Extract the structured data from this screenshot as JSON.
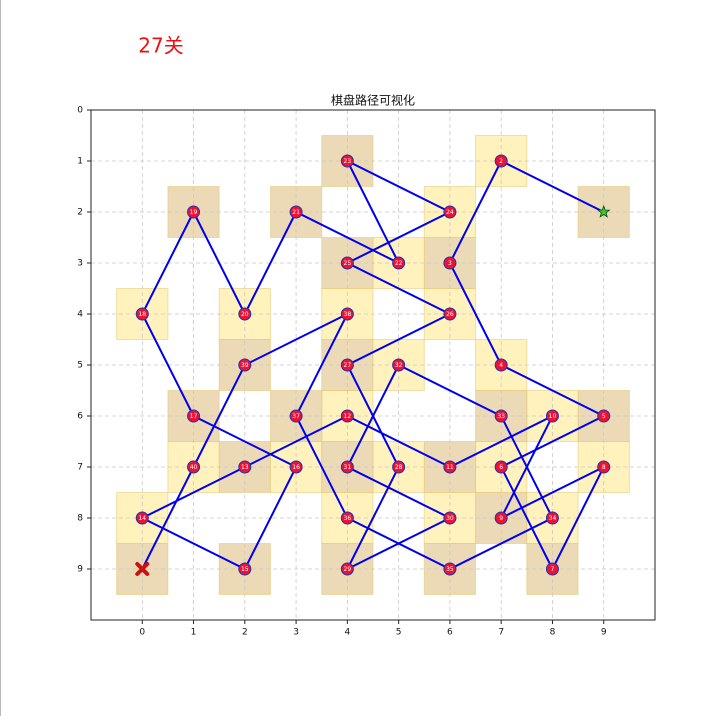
{
  "header": {
    "title": "27关"
  },
  "chart_data": {
    "type": "path",
    "title": "棋盘路径可视化",
    "xlim": [
      -1,
      10
    ],
    "ylim": [
      10,
      0
    ],
    "xticks": [
      0,
      1,
      2,
      3,
      4,
      5,
      6,
      7,
      8,
      9
    ],
    "yticks": [
      0,
      1,
      2,
      3,
      4,
      5,
      6,
      7,
      8,
      9
    ],
    "grid": true,
    "line_color": "#0000ee",
    "node_color": "#ee1133",
    "start": {
      "x": 9,
      "y": 2,
      "color": "#33cc33",
      "cell_color": "#e8d3a8"
    },
    "end": {
      "x": 0,
      "y": 9,
      "color": "#cc1111",
      "cell_color": "#e8d3a8"
    },
    "path": [
      {
        "x": 7,
        "y": 1,
        "label": "2",
        "cell_color": "#fff0b0"
      },
      {
        "x": 6,
        "y": 3,
        "label": "3",
        "cell_color": "#e8d3a8"
      },
      {
        "x": 7,
        "y": 5,
        "label": "4",
        "cell_color": "#fff0b0"
      },
      {
        "x": 9,
        "y": 6,
        "label": "5",
        "cell_color": "#e8d3a8"
      },
      {
        "x": 7,
        "y": 7,
        "label": "6",
        "cell_color": "#fff0b0"
      },
      {
        "x": 8,
        "y": 9,
        "label": "7",
        "cell_color": "#e8d3a8"
      },
      {
        "x": 9,
        "y": 7,
        "label": "8",
        "cell_color": "#fff0b0"
      },
      {
        "x": 7,
        "y": 8,
        "label": "9",
        "cell_color": "#e8d3a8"
      },
      {
        "x": 8,
        "y": 6,
        "label": "10",
        "cell_color": "#fff0b0"
      },
      {
        "x": 6,
        "y": 7,
        "label": "11",
        "cell_color": "#e8d3a8"
      },
      {
        "x": 4,
        "y": 6,
        "label": "12",
        "cell_color": "#fff0b0"
      },
      {
        "x": 2,
        "y": 7,
        "label": "13",
        "cell_color": "#e8d3a8"
      },
      {
        "x": 0,
        "y": 8,
        "label": "14",
        "cell_color": "#fff0b0"
      },
      {
        "x": 2,
        "y": 9,
        "label": "15",
        "cell_color": "#e8d3a8"
      },
      {
        "x": 3,
        "y": 7,
        "label": "16",
        "cell_color": "#fff0b0"
      },
      {
        "x": 1,
        "y": 6,
        "label": "17",
        "cell_color": "#e8d3a8"
      },
      {
        "x": 0,
        "y": 4,
        "label": "18",
        "cell_color": "#fff0b0"
      },
      {
        "x": 1,
        "y": 2,
        "label": "19",
        "cell_color": "#e8d3a8"
      },
      {
        "x": 2,
        "y": 4,
        "label": "20",
        "cell_color": "#fff0b0"
      },
      {
        "x": 3,
        "y": 2,
        "label": "21",
        "cell_color": "#e8d3a8"
      },
      {
        "x": 5,
        "y": 3,
        "label": "22",
        "cell_color": "#fff0b0"
      },
      {
        "x": 4,
        "y": 1,
        "label": "23",
        "cell_color": "#e8d3a8"
      },
      {
        "x": 6,
        "y": 2,
        "label": "24",
        "cell_color": "#fff0b0"
      },
      {
        "x": 4,
        "y": 3,
        "label": "25",
        "cell_color": "#e8d3a8"
      },
      {
        "x": 6,
        "y": 4,
        "label": "26",
        "cell_color": "#fff0b0"
      },
      {
        "x": 4,
        "y": 5,
        "label": "27",
        "cell_color": "#e8d3a8"
      },
      {
        "x": 5,
        "y": 7,
        "label": "28",
        "cell_color": "#fff0b0"
      },
      {
        "x": 4,
        "y": 9,
        "label": "29",
        "cell_color": "#e8d3a8"
      },
      {
        "x": 6,
        "y": 8,
        "label": "30",
        "cell_color": "#fff0b0"
      },
      {
        "x": 4,
        "y": 7,
        "label": "31",
        "cell_color": "#e8d3a8"
      },
      {
        "x": 5,
        "y": 5,
        "label": "32",
        "cell_color": "#fff0b0"
      },
      {
        "x": 7,
        "y": 6,
        "label": "33",
        "cell_color": "#e8d3a8"
      },
      {
        "x": 8,
        "y": 8,
        "label": "34",
        "cell_color": "#fff0b0"
      },
      {
        "x": 6,
        "y": 9,
        "label": "35",
        "cell_color": "#e8d3a8"
      },
      {
        "x": 4,
        "y": 8,
        "label": "36",
        "cell_color": "#fff0b0"
      },
      {
        "x": 3,
        "y": 6,
        "label": "37",
        "cell_color": "#e8d3a8"
      },
      {
        "x": 4,
        "y": 4,
        "label": "38",
        "cell_color": "#fff0b0"
      },
      {
        "x": 2,
        "y": 5,
        "label": "39",
        "cell_color": "#e8d3a8"
      },
      {
        "x": 1,
        "y": 7,
        "label": "40",
        "cell_color": "#fff0b0"
      }
    ]
  }
}
